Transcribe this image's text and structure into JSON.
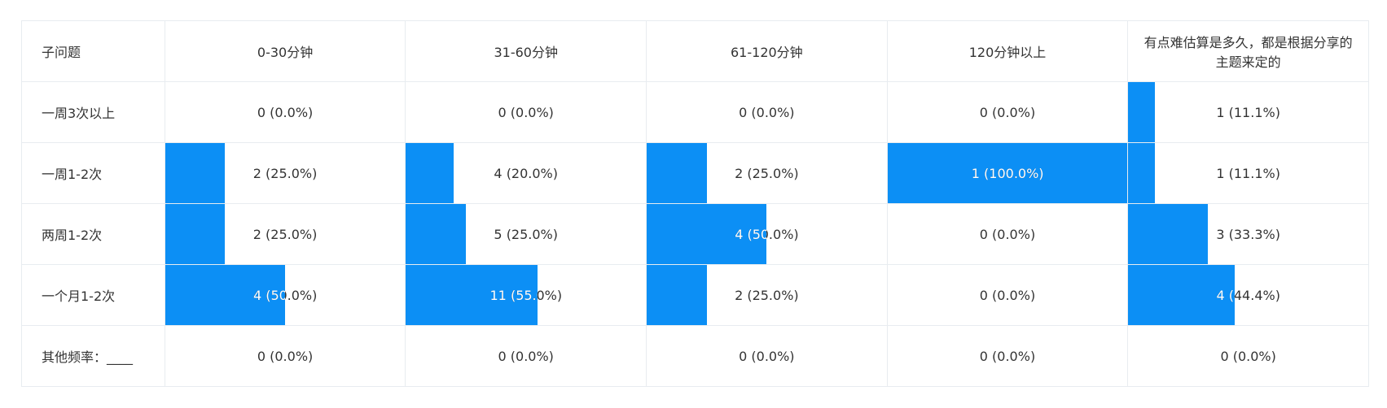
{
  "chart_data": {
    "type": "table",
    "columns": [
      "子问题",
      "0-30分钟",
      "31-60分钟",
      "61-120分钟",
      "120分钟以上",
      "有点难估算是多久，都是根据分享的主题来定的"
    ],
    "rows": [
      {
        "label": "一周3次以上",
        "cells": [
          {
            "count": 0,
            "percent": 0.0,
            "text": "0 (0.0%)"
          },
          {
            "count": 0,
            "percent": 0.0,
            "text": "0 (0.0%)"
          },
          {
            "count": 0,
            "percent": 0.0,
            "text": "0 (0.0%)"
          },
          {
            "count": 0,
            "percent": 0.0,
            "text": "0 (0.0%)"
          },
          {
            "count": 1,
            "percent": 11.1,
            "text": "1 (11.1%)"
          }
        ]
      },
      {
        "label": "一周1-2次",
        "cells": [
          {
            "count": 2,
            "percent": 25.0,
            "text": "2 (25.0%)"
          },
          {
            "count": 4,
            "percent": 20.0,
            "text": "4 (20.0%)"
          },
          {
            "count": 2,
            "percent": 25.0,
            "text": "2 (25.0%)"
          },
          {
            "count": 1,
            "percent": 100.0,
            "text": "1 (100.0%)"
          },
          {
            "count": 1,
            "percent": 11.1,
            "text": "1 (11.1%)"
          }
        ]
      },
      {
        "label": "两周1-2次",
        "cells": [
          {
            "count": 2,
            "percent": 25.0,
            "text": "2 (25.0%)"
          },
          {
            "count": 5,
            "percent": 25.0,
            "text": "5 (25.0%)"
          },
          {
            "count": 4,
            "percent": 50.0,
            "text": "4 (50.0%)"
          },
          {
            "count": 0,
            "percent": 0.0,
            "text": "0 (0.0%)"
          },
          {
            "count": 3,
            "percent": 33.3,
            "text": "3 (33.3%)"
          }
        ]
      },
      {
        "label": "一个月1-2次",
        "cells": [
          {
            "count": 4,
            "percent": 50.0,
            "text": "4 (50.0%)"
          },
          {
            "count": 11,
            "percent": 55.0,
            "text": "11 (55.0%)"
          },
          {
            "count": 2,
            "percent": 25.0,
            "text": "2 (25.0%)"
          },
          {
            "count": 0,
            "percent": 0.0,
            "text": "0 (0.0%)"
          },
          {
            "count": 4,
            "percent": 44.4,
            "text": "4 (44.4%)"
          }
        ]
      },
      {
        "label": "其他频率：____",
        "cells": [
          {
            "count": 0,
            "percent": 0.0,
            "text": "0 (0.0%)"
          },
          {
            "count": 0,
            "percent": 0.0,
            "text": "0 (0.0%)"
          },
          {
            "count": 0,
            "percent": 0.0,
            "text": "0 (0.0%)"
          },
          {
            "count": 0,
            "percent": 0.0,
            "text": "0 (0.0%)"
          },
          {
            "count": 0,
            "percent": 0.0,
            "text": "0 (0.0%)"
          }
        ]
      }
    ]
  },
  "colors": {
    "bar": "#0c8ff5",
    "border": "#e8ecf0",
    "text": "#333333"
  }
}
